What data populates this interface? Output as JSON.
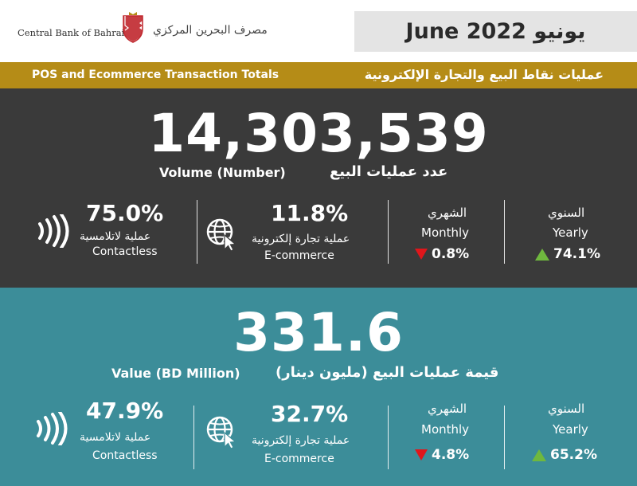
{
  "header": {
    "bank_name_en": "Central Bank of Bahrain",
    "bank_name_ar": "مصرف البحرين المركزي",
    "period": "June 2022 يونيو"
  },
  "title_bar": {
    "en": "POS and Ecommerce Transaction Totals",
    "ar": "عمليات نقاط البيع والتجارة الإلكترونية"
  },
  "volume": {
    "total": "14,303,539",
    "label_en": "Volume (Number)",
    "label_ar": "عدد عمليات البيع",
    "contactless": {
      "pct": "75.0%",
      "label_ar": "عملية لاتلامسية",
      "label_en": "Contactless"
    },
    "ecommerce": {
      "pct": "11.8%",
      "label_ar": "عملية تجارة إلكترونية",
      "label_en": "E-commerce"
    },
    "monthly": {
      "label_ar": "الشهري",
      "label_en": "Monthly",
      "change": "0.8%",
      "direction": "down"
    },
    "yearly": {
      "label_ar": "السنوي",
      "label_en": "Yearly",
      "change": "74.1%",
      "direction": "up"
    }
  },
  "value": {
    "total": "331.6",
    "label_en": "Value (BD Million)",
    "label_ar": "قيمة عمليات البيع (مليون دينار)",
    "contactless": {
      "pct": "47.9%",
      "label_ar": "عملية لاتلامسية",
      "label_en": "Contactless"
    },
    "ecommerce": {
      "pct": "32.7%",
      "label_ar": "عملية تجارة إلكترونية",
      "label_en": "E-commerce"
    },
    "monthly": {
      "label_ar": "الشهري",
      "label_en": "Monthly",
      "change": "4.8%",
      "direction": "down"
    },
    "yearly": {
      "label_ar": "السنوي",
      "label_en": "Yearly",
      "change": "65.2%",
      "direction": "up"
    }
  },
  "colors": {
    "gold": "#b58c17",
    "dark": "#3a3a3a",
    "teal": "#3c8d99",
    "down": "#e0161b",
    "up": "#6fb83e"
  },
  "icons": [
    "bank-crest-icon",
    "contactless-icon",
    "globe-cursor-icon",
    "arrow-down-icon",
    "arrow-up-icon"
  ]
}
